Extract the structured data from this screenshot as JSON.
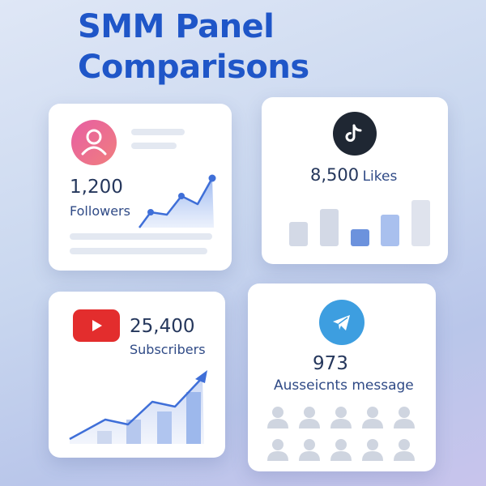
{
  "title": {
    "line1": "SMM Panel",
    "line2": "Comparisons"
  },
  "cards": [
    {
      "platform": "instagram",
      "value": "1,200",
      "label": "Followers",
      "icon": "user-profile-icon",
      "accent": "#3f6fd8"
    },
    {
      "platform": "tiktok",
      "value": "8,500",
      "label": "Likes",
      "icon": "tiktok-icon",
      "bars": [
        0.48,
        0.74,
        0.34,
        0.63,
        0.92
      ],
      "bar_colors": [
        "#d3d9e6",
        "#d3d9e6",
        "#6c92dd",
        "#a9c0ee",
        "#dfe3ed"
      ]
    },
    {
      "platform": "youtube",
      "value": "25,400",
      "label": "Subscribers",
      "icon": "youtube-play-icon",
      "accent": "#3f6fd8"
    },
    {
      "platform": "telegram",
      "value": "973",
      "label": "Ausseicnts message",
      "icon": "telegram-paper-plane-icon",
      "audience_count": 10
    }
  ],
  "colors": {
    "title": "#1f56c8",
    "card_bg": "#ffffff",
    "youtube_red": "#e32d2d",
    "telegram_blue": "#3d9ee0",
    "tiktok_dark": "#1f2733"
  }
}
